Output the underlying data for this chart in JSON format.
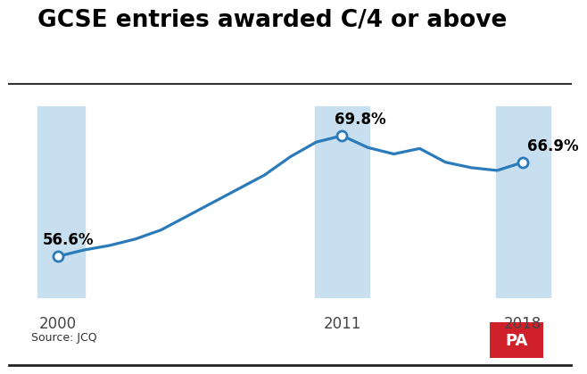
{
  "title": "GCSE entries awarded C/4 or above",
  "source": "Source: JCQ",
  "years": [
    2000,
    2001,
    2002,
    2003,
    2004,
    2005,
    2006,
    2007,
    2008,
    2009,
    2010,
    2011,
    2012,
    2013,
    2014,
    2015,
    2016,
    2017,
    2018
  ],
  "values": [
    56.6,
    57.3,
    57.8,
    58.5,
    59.5,
    61.0,
    62.5,
    64.0,
    65.5,
    67.5,
    69.1,
    69.8,
    68.5,
    67.8,
    68.4,
    66.9,
    66.3,
    66.0,
    66.9
  ],
  "highlighted_years": [
    2000,
    2011,
    2018
  ],
  "highlighted_values": [
    56.6,
    69.8,
    66.9
  ],
  "highlighted_labels": [
    "56.6%",
    "69.8%",
    "66.9%"
  ],
  "line_color": "#2b7bba",
  "marker_face_color": "#ffffff",
  "marker_edge_color": "#2b7bba",
  "highlight_bg_color": "#c8dff0",
  "background_color": "#ffffff",
  "ylim": [
    52,
    73
  ],
  "xlim": [
    1999.2,
    2019.2
  ],
  "title_fontsize": 19,
  "label_fontsize": 12,
  "source_fontsize": 9,
  "year_label_fontsize": 12,
  "pa_bg_color": "#d0212a",
  "pa_text_color": "#ffffff",
  "divider_color": "#333333",
  "bottom_line_color": "#222222"
}
